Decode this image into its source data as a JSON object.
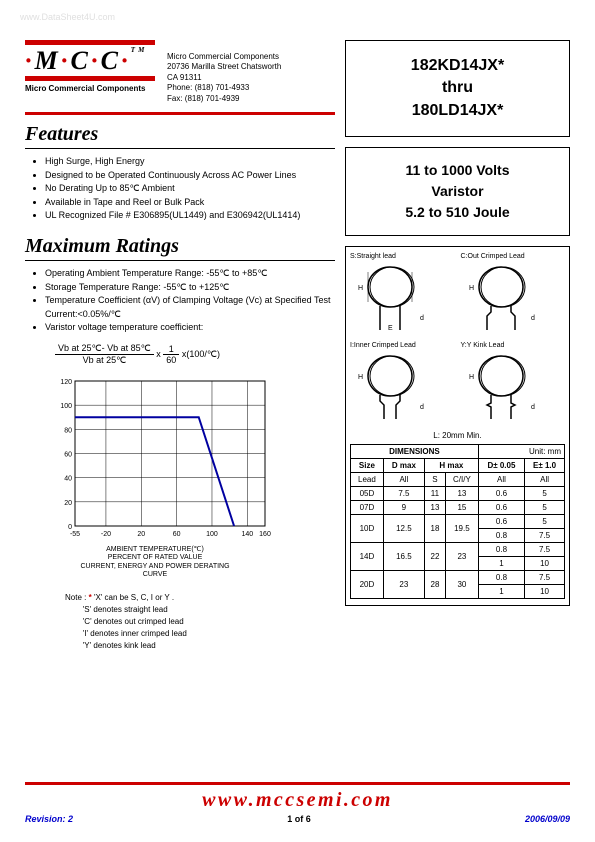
{
  "watermark": "www.DataSheet4U.com",
  "logo": {
    "text": "M C C",
    "subtitle": "Micro Commercial Components",
    "tm": "TM"
  },
  "company": {
    "name": "Micro Commercial Components",
    "addr1": "20736 Marilla Street Chatsworth",
    "addr2": "CA 91311",
    "phone": "Phone: (818) 701-4933",
    "fax": "Fax:      (818) 701-4939"
  },
  "part_box": {
    "line1": "182KD14JX*",
    "line2": "thru",
    "line3": "180LD14JX*"
  },
  "desc_box": {
    "line1": "11 to 1000 Volts",
    "line2": "Varistor",
    "line3": "5.2 to 510 Joule"
  },
  "features": {
    "title": "Features",
    "items": [
      "High Surge, High Energy",
      "Designed to be Operated Continuously Across AC Power Lines",
      "No Derating Up to 85℃ Ambient",
      "Available in Tape and Reel or Bulk Pack",
      "UL Recognized File # E306895(UL1449) and E306942(UL1414)"
    ]
  },
  "ratings": {
    "title": "Maximum Ratings",
    "items": [
      "Operating Ambient Temperature Range: -55℃ to +85℃",
      "Storage Temperature Range: -55℃ to +125℃",
      "Temperature Coefficient (αV) of Clamping Voltage (Vc) at Specified Test Current:<0.05%/℃",
      "Varistor voltage temperature coefficient:"
    ]
  },
  "formula": {
    "num": "Vb at 25℃- Vb at 85℃",
    "den": "Vb at 25℃",
    "mid": "x",
    "num2": "1",
    "den2": "60",
    "tail": "x(100/℃)"
  },
  "chart": {
    "type": "line",
    "xlim": [
      -55,
      160
    ],
    "ylim": [
      0,
      120
    ],
    "xticks": [
      -55,
      -20,
      20,
      60,
      100,
      140,
      160
    ],
    "yticks": [
      0,
      20,
      40,
      60,
      80,
      100,
      120
    ],
    "xlabel1": "AMBIENT TEMPERATURE(℃)",
    "xlabel2": "PERCENT OF RATED VALUE",
    "xlabel3": "CURRENT, ENERGY AND POWER DERATING",
    "xlabel4": "CURVE",
    "line_color": "#0000a0",
    "grid_color": "#000000",
    "background_color": "#ffffff",
    "data_x": [
      -55,
      85,
      125
    ],
    "data_y": [
      90,
      90,
      0
    ],
    "line_width": 2
  },
  "note": {
    "label": "Note :",
    "star": "*",
    "lines": [
      "'X' can be S, C, I or Y .",
      "'S' denotes straight lead",
      "'C' denotes out crimped lead",
      "'I' denotes inner crimped lead",
      "'Y' denotes kink  lead"
    ]
  },
  "diagrams": {
    "titles": [
      "S:Straight lead",
      "C:Out Crimped Lead",
      "I:Inner Crimped Lead",
      "Y:Y Kink Lead"
    ],
    "min_label": "L: 20mm Min."
  },
  "dim_table": {
    "header_title": "DIMENSIONS",
    "header_unit": "Unit: mm",
    "cols": [
      "Size",
      "D max",
      "H max",
      "",
      "D± 0.05",
      "E± 1.0"
    ],
    "lead_row": [
      "Lead",
      "All",
      "S",
      "C/I/Y",
      "All",
      "All"
    ],
    "rows": [
      [
        "05D",
        "7.5",
        "11",
        "13",
        "0.6",
        "5"
      ],
      [
        "07D",
        "9",
        "13",
        "15",
        "0.6",
        "5"
      ],
      [
        "10D",
        "12.5",
        "18",
        "19.5",
        "0.6",
        "5"
      ],
      [
        "10D_2",
        "",
        "",
        "",
        "0.8",
        "7.5"
      ],
      [
        "14D",
        "16.5",
        "22",
        "23",
        "0.8",
        "7.5"
      ],
      [
        "14D_2",
        "",
        "",
        "",
        "1",
        "10"
      ],
      [
        "20D",
        "23",
        "28",
        "30",
        "0.8",
        "7.5"
      ],
      [
        "20D_2",
        "",
        "",
        "",
        "1",
        "10"
      ]
    ]
  },
  "footer": {
    "url": "www.mccsemi.com",
    "revision": "Revision: 2",
    "page": "1 of 6",
    "date": "2006/09/09"
  }
}
